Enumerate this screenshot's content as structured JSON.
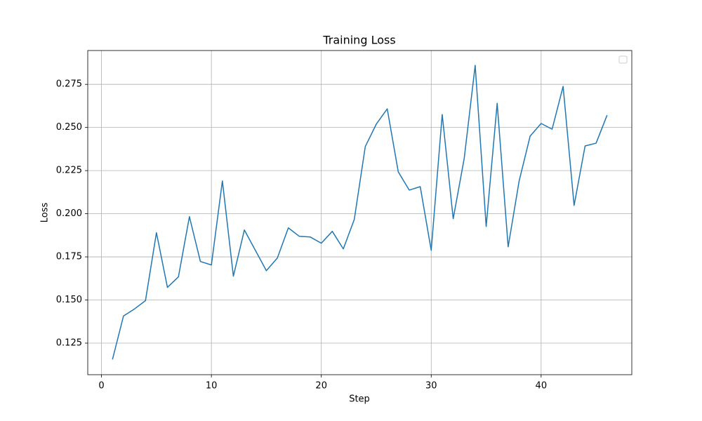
{
  "chart_data": {
    "type": "line",
    "title": "Training Loss",
    "x_label": "Step",
    "y_label": "Loss",
    "x": [
      1,
      2,
      3,
      4,
      5,
      6,
      7,
      8,
      9,
      10,
      11,
      12,
      13,
      14,
      15,
      16,
      17,
      18,
      19,
      20,
      21,
      22,
      23,
      24,
      25,
      26,
      27,
      28,
      29,
      30,
      31,
      32,
      33,
      34,
      35,
      36,
      37,
      38,
      39,
      40,
      41,
      42,
      43,
      44,
      45,
      46
    ],
    "values": [
      0.1155,
      0.1407,
      0.1448,
      0.1496,
      0.189,
      0.1573,
      0.1634,
      0.1983,
      0.1723,
      0.1703,
      0.219,
      0.1638,
      0.1906,
      0.1788,
      0.167,
      0.1743,
      0.1918,
      0.1869,
      0.1865,
      0.1829,
      0.1898,
      0.1796,
      0.1967,
      0.2389,
      0.2519,
      0.2608,
      0.2243,
      0.2137,
      0.2157,
      0.1788,
      0.2575,
      0.1971,
      0.232,
      0.286,
      0.1926,
      0.264,
      0.1808,
      0.219,
      0.245,
      0.2523,
      0.249,
      0.2738,
      0.2048,
      0.2393,
      0.2409,
      0.2571
    ],
    "color": "#1f77b4",
    "xlim": [
      -1.25,
      48.25
    ],
    "xticks": [
      0,
      10,
      20,
      30,
      40
    ],
    "ylim": [
      0.1067,
      0.2946
    ],
    "yticks": [
      0.125,
      {
        "value": 0.15,
        "label": "0.150"
      },
      0.175,
      {
        "value": 0.2,
        "label": "0.200"
      },
      0.225,
      {
        "value": 0.25,
        "label": "0.250"
      },
      0.275
    ],
    "grid": true
  }
}
